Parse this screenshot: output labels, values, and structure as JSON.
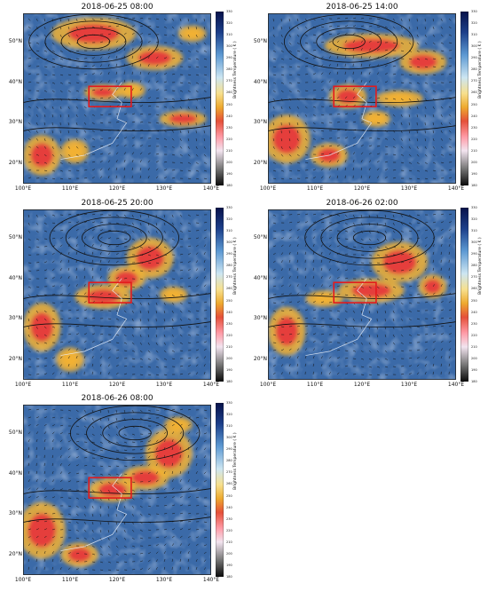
{
  "figure": {
    "panels": [
      {
        "id": "p1",
        "title": "2018-06-25 08:00"
      },
      {
        "id": "p2",
        "title": "2018-06-25 14:00"
      },
      {
        "id": "p3",
        "title": "2018-06-25 20:00"
      },
      {
        "id": "p4",
        "title": "2018-06-26 02:00"
      },
      {
        "id": "p5",
        "title": "2018-06-26 08:00"
      }
    ],
    "lat_labels": [
      "50°N",
      "40°N",
      "30°N",
      "20°N"
    ],
    "lon_labels": [
      "100°E",
      "110°E",
      "120°E",
      "130°E",
      "140°E"
    ],
    "colorbar": {
      "label": "Brightness Temperature ( K )",
      "ticks": [
        "330",
        "320",
        "310",
        "300",
        "290",
        "280",
        "270",
        "260",
        "250",
        "240",
        "230",
        "220",
        "210",
        "200",
        "190",
        "180"
      ]
    },
    "study_box": {
      "lon": [
        114,
        123
      ],
      "lat": [
        34,
        39
      ],
      "color": "#e41a1c"
    },
    "colors": {
      "cold_cloud": "#e5383b",
      "warm": "#f2b134",
      "clear_sky": "#3b6aa8"
    }
  },
  "chart_data": {
    "type": "map",
    "variable": "Brightness Temperature",
    "units": "K",
    "lon_range": [
      100,
      140
    ],
    "lat_range": [
      15,
      57
    ],
    "colorbar_range": [
      180,
      330
    ],
    "times": [
      "2018-06-25 08:00",
      "2018-06-25 14:00",
      "2018-06-25 20:00",
      "2018-06-26 02:00",
      "2018-06-26 08:00"
    ],
    "box": {
      "lon": [
        114,
        123
      ],
      "lat": [
        34,
        39
      ]
    }
  }
}
